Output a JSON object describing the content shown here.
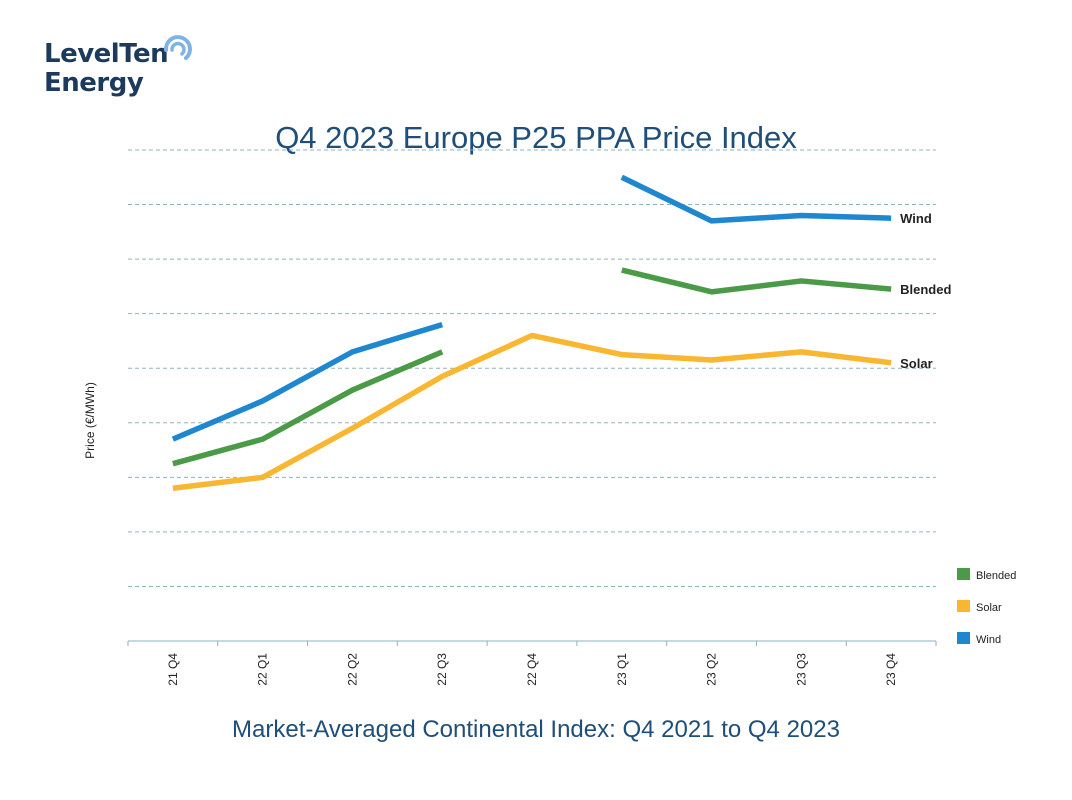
{
  "logo": {
    "line1": "LevelTen",
    "line2": "Energy",
    "mark_color": "#7fb3e6"
  },
  "title": "Q4 2023 Europe P25 PPA Price Index",
  "subtitle": "Market-Averaged Continental Index: Q4 2021 to Q4 2023",
  "chart_data": {
    "type": "line",
    "title": "Q4 2023 Europe P25 PPA Price Index",
    "xlabel": "",
    "ylabel": "Price (€/MWh)",
    "categories": [
      "21 Q4",
      "22 Q1",
      "22 Q2",
      "22 Q3",
      "22 Q4",
      "23 Q1",
      "23 Q2",
      "23 Q3",
      "23 Q4"
    ],
    "ylim": [
      0,
      9
    ],
    "y_ticks_labeled": false,
    "grid": true,
    "legend_position": "bottom-right",
    "legend_order": [
      "Blended",
      "Solar",
      "Wind"
    ],
    "series": [
      {
        "name": "Wind",
        "color": "#1f86d0",
        "values": [
          3.7,
          4.4,
          5.3,
          5.8,
          null,
          8.5,
          7.7,
          7.8,
          7.75
        ]
      },
      {
        "name": "Blended",
        "color": "#4a9a48",
        "values": [
          3.25,
          3.7,
          4.6,
          5.3,
          null,
          6.8,
          6.4,
          6.6,
          6.45
        ]
      },
      {
        "name": "Solar",
        "color": "#f9b731",
        "values": [
          2.8,
          3.0,
          3.9,
          4.85,
          5.6,
          5.25,
          5.15,
          5.3,
          5.1
        ]
      }
    ]
  }
}
